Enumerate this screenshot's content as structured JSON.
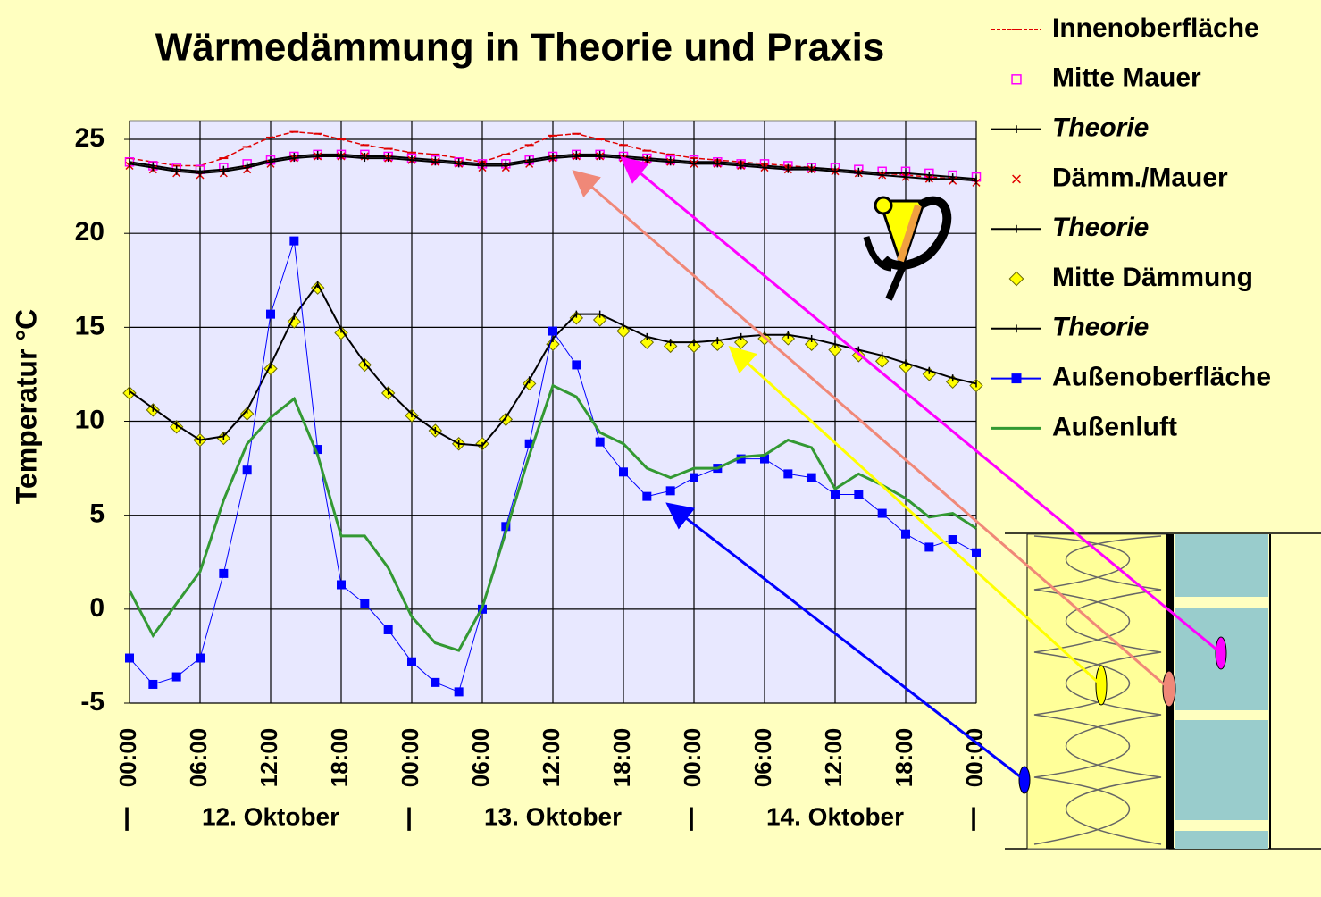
{
  "chart_data": {
    "type": "line",
    "title": "Wärmedämmung in Theorie und Praxis",
    "y_label": "Temperatur °C",
    "x": [
      0,
      2,
      4,
      6,
      8,
      10,
      12,
      14,
      16,
      18,
      20,
      22,
      24,
      26,
      28,
      30,
      32,
      34,
      36,
      38,
      40,
      42,
      44,
      46,
      48,
      50,
      52,
      54,
      56,
      58,
      60,
      62,
      64,
      66,
      68,
      70,
      72
    ],
    "xlim": [
      0,
      72
    ],
    "xticks": [
      {
        "value": 0,
        "label": "00:00"
      },
      {
        "value": 6,
        "label": "06:00"
      },
      {
        "value": 12,
        "label": "12:00"
      },
      {
        "value": 18,
        "label": "18:00"
      },
      {
        "value": 24,
        "label": "00:00"
      },
      {
        "value": 30,
        "label": "06:00"
      },
      {
        "value": 36,
        "label": "12:00"
      },
      {
        "value": 42,
        "label": "18:00"
      },
      {
        "value": 48,
        "label": "00:00"
      },
      {
        "value": 54,
        "label": "06:00"
      },
      {
        "value": 60,
        "label": "12:00"
      },
      {
        "value": 66,
        "label": "18:00"
      },
      {
        "value": 72,
        "label": "00:00"
      }
    ],
    "day_labels": [
      {
        "value": 12,
        "label": "12. Oktober"
      },
      {
        "value": 36,
        "label": "13. Oktober"
      },
      {
        "value": 60,
        "label": "14. Oktober"
      }
    ],
    "day_separators": [
      {
        "value": 0,
        "label": "|"
      },
      {
        "value": 24,
        "label": "|"
      },
      {
        "value": 48,
        "label": "|"
      },
      {
        "value": 72,
        "label": "|"
      }
    ],
    "ylim": [
      -5,
      26
    ],
    "yticks": [
      -5,
      0,
      5,
      10,
      15,
      20,
      25
    ],
    "grid": true,
    "legend": "right",
    "series": [
      {
        "name": "Innenoberfläche",
        "color": "#e00000",
        "marker": "dash",
        "line": "dashed",
        "line_width": 1.5,
        "italic": false,
        "values": [
          24.0,
          23.8,
          23.6,
          23.6,
          24.0,
          24.6,
          25.1,
          25.4,
          25.3,
          25.0,
          24.7,
          24.5,
          24.3,
          24.2,
          24.0,
          23.8,
          24.2,
          24.7,
          25.2,
          25.3,
          25.0,
          24.7,
          24.4,
          24.2,
          24.0,
          23.9,
          23.8,
          23.7,
          23.6,
          23.5,
          23.4,
          23.3,
          23.2,
          23.1,
          23.0,
          22.9,
          22.8
        ]
      },
      {
        "name": "Mitte Mauer",
        "color": "#ff00ff",
        "marker": "open-square",
        "line": "none",
        "line_width": 1,
        "italic": false,
        "values": [
          23.8,
          23.6,
          23.5,
          23.4,
          23.5,
          23.7,
          23.9,
          24.1,
          24.2,
          24.2,
          24.2,
          24.1,
          24.0,
          23.9,
          23.8,
          23.7,
          23.7,
          23.9,
          24.1,
          24.2,
          24.2,
          24.1,
          24.0,
          23.9,
          23.9,
          23.8,
          23.7,
          23.7,
          23.6,
          23.5,
          23.5,
          23.4,
          23.3,
          23.3,
          23.2,
          23.1,
          23.0
        ]
      },
      {
        "name": "Theorie",
        "color": "#000000",
        "marker": "plus",
        "line": "solid",
        "line_width": 2,
        "italic": true,
        "values": [
          23.8,
          23.6,
          23.4,
          23.3,
          23.4,
          23.6,
          23.9,
          24.1,
          24.2,
          24.2,
          24.1,
          24.1,
          24.0,
          23.9,
          23.8,
          23.7,
          23.7,
          23.9,
          24.1,
          24.2,
          24.2,
          24.1,
          24.0,
          23.9,
          23.8,
          23.8,
          23.7,
          23.6,
          23.5,
          23.5,
          23.4,
          23.3,
          23.2,
          23.2,
          23.1,
          23.0,
          22.9
        ]
      },
      {
        "name": "Dämm./Mauer",
        "color": "#e00000",
        "marker": "x",
        "line": "none",
        "line_width": 1,
        "italic": false,
        "values": [
          23.6,
          23.4,
          23.2,
          23.1,
          23.2,
          23.4,
          23.7,
          24.0,
          24.1,
          24.1,
          24.1,
          24.0,
          23.9,
          23.8,
          23.7,
          23.5,
          23.5,
          23.7,
          24.0,
          24.1,
          24.1,
          24.0,
          23.9,
          23.8,
          23.7,
          23.7,
          23.6,
          23.5,
          23.4,
          23.4,
          23.3,
          23.2,
          23.1,
          23.0,
          22.9,
          22.8,
          22.7
        ]
      },
      {
        "name": "Theorie",
        "color": "#000000",
        "marker": "plus",
        "line": "solid",
        "line_width": 2,
        "italic": true,
        "values": [
          23.7,
          23.5,
          23.3,
          23.2,
          23.3,
          23.5,
          23.8,
          24.0,
          24.1,
          24.1,
          24.0,
          24.0,
          23.9,
          23.8,
          23.7,
          23.6,
          23.6,
          23.8,
          24.0,
          24.1,
          24.1,
          24.0,
          23.9,
          23.8,
          23.7,
          23.7,
          23.6,
          23.5,
          23.4,
          23.4,
          23.3,
          23.2,
          23.1,
          23.0,
          22.9,
          22.9,
          22.8
        ]
      },
      {
        "name": "Mitte Dämmung",
        "color": "#ffff00",
        "marker": "diamond",
        "line": "none",
        "line_width": 1,
        "italic": false,
        "values": [
          11.5,
          10.6,
          9.7,
          9.0,
          9.1,
          10.4,
          12.8,
          15.3,
          17.1,
          14.7,
          13.0,
          11.5,
          10.3,
          9.5,
          8.8,
          8.8,
          10.1,
          12.0,
          14.1,
          15.5,
          15.4,
          14.8,
          14.2,
          14.0,
          14.0,
          14.1,
          14.2,
          14.4,
          14.4,
          14.1,
          13.8,
          13.5,
          13.2,
          12.9,
          12.5,
          12.1,
          11.9
        ]
      },
      {
        "name": "Theorie",
        "color": "#000000",
        "marker": "plus",
        "line": "solid",
        "line_width": 2,
        "italic": true,
        "values": [
          11.6,
          10.7,
          9.8,
          9.0,
          9.2,
          10.6,
          13.0,
          15.6,
          17.3,
          14.9,
          13.1,
          11.6,
          10.4,
          9.5,
          8.8,
          8.7,
          10.2,
          12.2,
          14.4,
          15.7,
          15.7,
          15.1,
          14.5,
          14.2,
          14.2,
          14.3,
          14.5,
          14.6,
          14.6,
          14.4,
          14.1,
          13.8,
          13.5,
          13.1,
          12.7,
          12.3,
          12.0
        ]
      },
      {
        "name": "Außenoberfläche",
        "color": "#0000ff",
        "marker": "square",
        "line": "solid",
        "line_width": 1,
        "italic": false,
        "values": [
          -2.6,
          -4.0,
          -3.6,
          -2.6,
          1.9,
          7.4,
          15.7,
          19.6,
          8.5,
          1.3,
          0.3,
          -1.1,
          -2.8,
          -3.9,
          -4.4,
          0,
          4.4,
          8.8,
          14.8,
          13,
          8.9,
          7.3,
          6.0,
          6.3,
          7.0,
          7.5,
          8.0,
          8.0,
          7.2,
          7.0,
          6.1,
          6.1,
          5.1,
          4.0,
          3.3,
          3.7,
          3.0
        ]
      },
      {
        "name": "Außenluft",
        "color": "#339933",
        "marker": "none",
        "line": "solid",
        "line_width": 3,
        "italic": false,
        "values": [
          1.0,
          -1.4,
          0.3,
          2.0,
          5.8,
          8.8,
          10.2,
          11.2,
          8.2,
          3.9,
          3.9,
          2.2,
          -0.4,
          -1.8,
          -2.2,
          0.1,
          4.1,
          8.2,
          11.9,
          11.3,
          9.4,
          8.8,
          7.5,
          7.0,
          7.5,
          7.5,
          8.1,
          8.2,
          9.0,
          8.6,
          6.4,
          7.2,
          6.6,
          5.9,
          4.9,
          5.1,
          4.3
        ]
      }
    ]
  }
}
